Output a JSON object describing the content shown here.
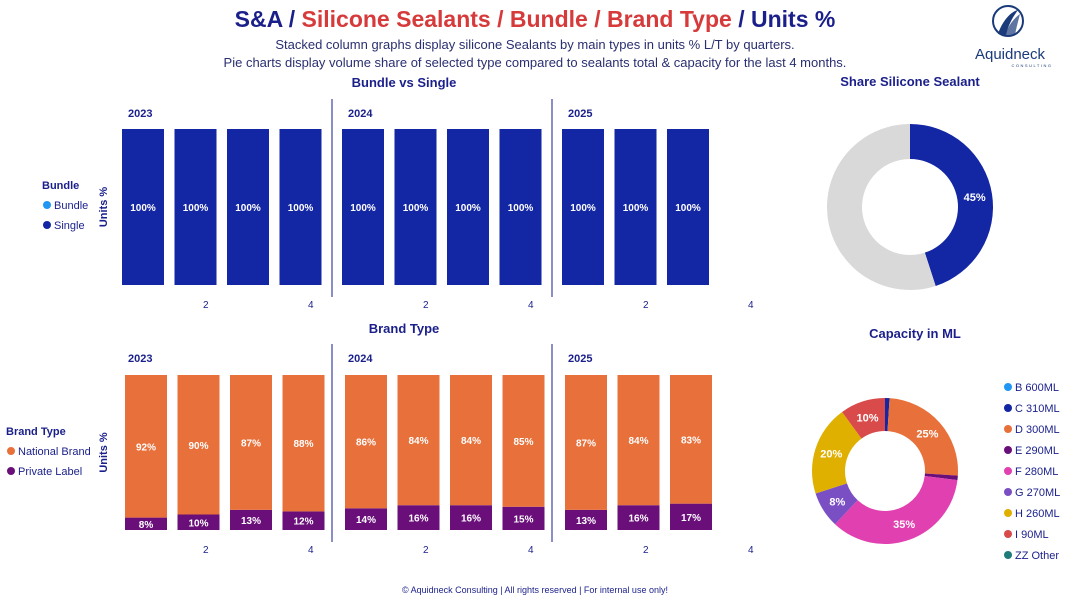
{
  "header": {
    "title_parts": [
      {
        "text": "S&A / ",
        "color": "#1a1f8a"
      },
      {
        "text": "Silicone Sealants / Bundle / Brand Type",
        "color": "#d63a3a"
      },
      {
        "text": " / Units %",
        "color": "#1a1f8a"
      }
    ],
    "subtitle_1": "Stacked column graphs display silicone Sealants by main types in units % L/T by quarters.",
    "subtitle_2": "Pie charts display volume share of selected type compared to sealants total & capacity for the last 4 months.",
    "logo_text": "Aquidneck",
    "logo_subtext": "CONSULTING"
  },
  "footer": "© Aquidneck Consulting  | All rights reserved | For internal use only!",
  "colors": {
    "single": "#1326a3",
    "bundle": "#2196f3",
    "national": "#e8703a",
    "private": "#6a0f7a",
    "grey": "#d9d9d9"
  },
  "chart_data": [
    {
      "type": "bar",
      "title": "Bundle vs Single",
      "ylabel": "Units %",
      "years": [
        "2023",
        "2024",
        "2025"
      ],
      "x_ticks": [
        "2",
        "4"
      ],
      "legend_title": "Bundle",
      "stacked": true,
      "series": [
        {
          "name": "Bundle",
          "values": [
            [
              0,
              0,
              0,
              0
            ],
            [
              0,
              0,
              0,
              0
            ],
            [
              0,
              0,
              0
            ]
          ]
        },
        {
          "name": "Single",
          "values": [
            [
              100,
              100,
              100,
              100
            ],
            [
              100,
              100,
              100,
              100
            ],
            [
              100,
              100,
              100
            ]
          ]
        }
      ],
      "labels": [
        [
          "100%",
          "100%",
          "100%",
          "100%"
        ],
        [
          "100%",
          "100%",
          "100%",
          "100%"
        ],
        [
          "100%",
          "100%",
          "100%"
        ]
      ]
    },
    {
      "type": "bar",
      "title": "Brand Type",
      "ylabel": "Units %",
      "years": [
        "2023",
        "2024",
        "2025"
      ],
      "x_ticks": [
        "2",
        "4"
      ],
      "legend_title": "Brand Type",
      "stacked": true,
      "series": [
        {
          "name": "National Brand",
          "values": [
            [
              92,
              90,
              87,
              88
            ],
            [
              86,
              84,
              84,
              85
            ],
            [
              87,
              84,
              83
            ]
          ],
          "labels": [
            [
              "92%",
              "90%",
              "87%",
              "88%"
            ],
            [
              "86%",
              "84%",
              "84%",
              "85%"
            ],
            [
              "87%",
              "84%",
              "83%"
            ]
          ]
        },
        {
          "name": "Private Label",
          "values": [
            [
              8,
              10,
              13,
              12
            ],
            [
              14,
              16,
              16,
              15
            ],
            [
              13,
              16,
              17
            ]
          ],
          "labels": [
            [
              "8%",
              "10%",
              "13%",
              "12%"
            ],
            [
              "14%",
              "16%",
              "16%",
              "15%"
            ],
            [
              "13%",
              "16%",
              "17%"
            ]
          ]
        }
      ]
    },
    {
      "type": "pie",
      "title": "Share Silicone Sealant",
      "values": [
        45,
        55
      ],
      "labels": [
        "45%",
        ""
      ]
    },
    {
      "type": "pie",
      "title": "Capacity in ML",
      "categories": [
        "B 600ML",
        "C 310ML",
        "D 300ML",
        "E 290ML",
        "F 280ML",
        "G 270ML",
        "H 260ML",
        "I 90ML",
        "ZZ Other"
      ],
      "colors": [
        "#2196f3",
        "#1326a3",
        "#e8703a",
        "#6a0f7a",
        "#e040b0",
        "#7b4fc4",
        "#e0b000",
        "#d94a4a",
        "#1f7a7a"
      ],
      "values": [
        0,
        1,
        25,
        1,
        35,
        8,
        20,
        10,
        0
      ],
      "labels": [
        "0%",
        "",
        "25%",
        "1%",
        "35%",
        "8%",
        "20%",
        "10%",
        ""
      ]
    }
  ]
}
